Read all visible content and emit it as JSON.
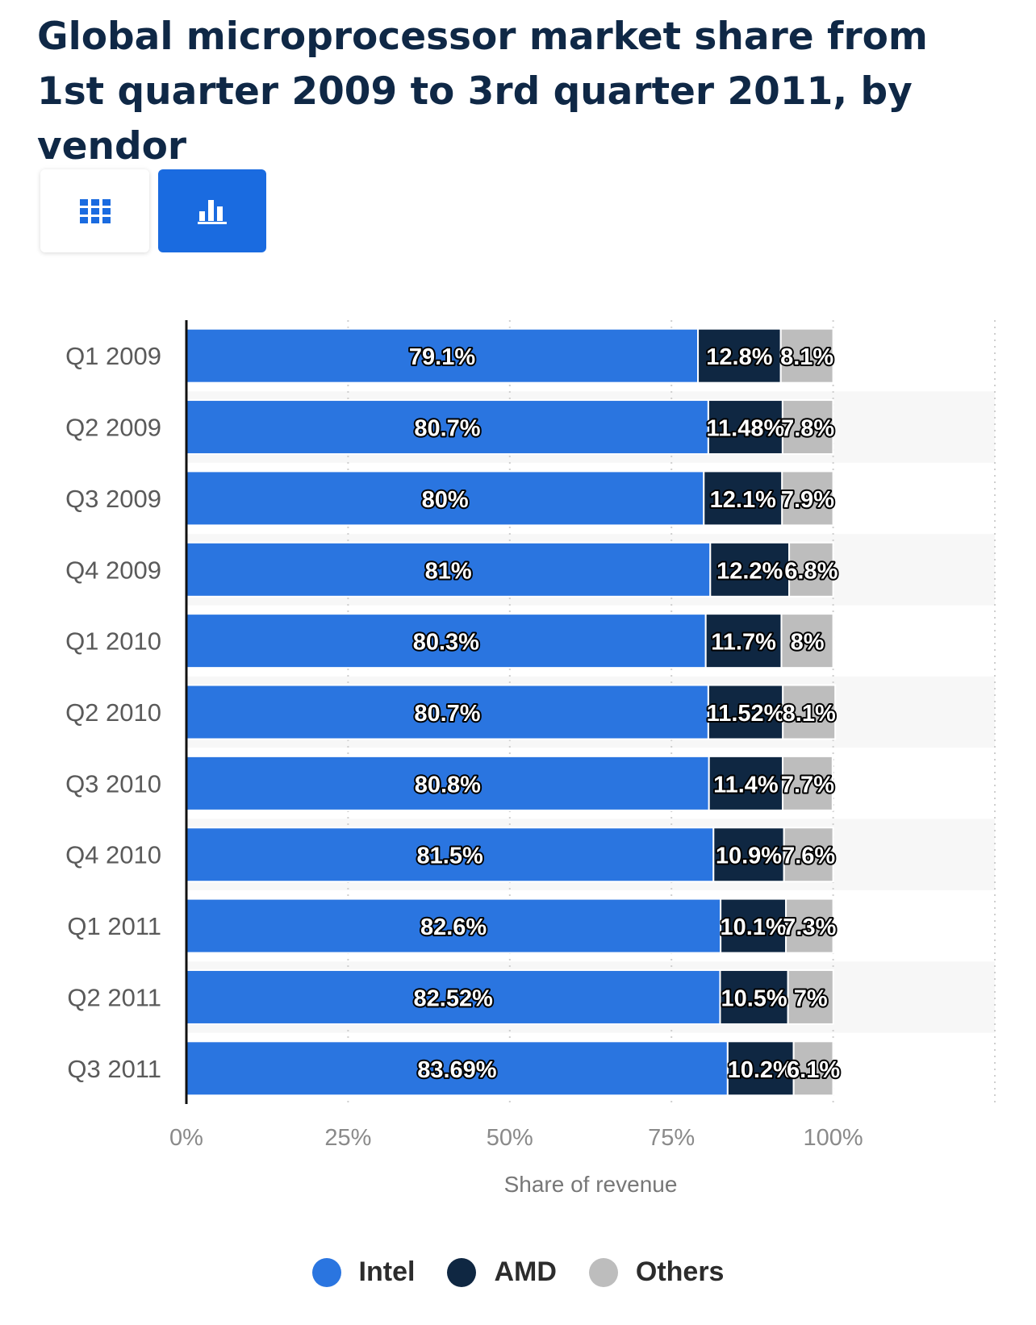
{
  "title": "Global microprocessor market share from 1st quarter 2009 to 3rd quarter 2011, by vendor",
  "view_toggle": {
    "table_icon": "table-grid-icon",
    "chart_icon": "bar-chart-icon",
    "active": "chart"
  },
  "colors": {
    "intel": "#2a75e0",
    "amd": "#0f2742",
    "others": "#bdbdbd",
    "accent": "#1a6be0",
    "title": "#0f2846"
  },
  "chart_data": {
    "type": "bar",
    "orientation": "horizontal",
    "stacked": true,
    "categories": [
      "Q1 2009",
      "Q2 2009",
      "Q3 2009",
      "Q4 2009",
      "Q1 2010",
      "Q2 2010",
      "Q3 2010",
      "Q4 2010",
      "Q1 2011",
      "Q2 2011",
      "Q3 2011"
    ],
    "series": [
      {
        "name": "Intel",
        "color": "#2a75e0",
        "values": [
          79.1,
          80.7,
          80,
          81,
          80.3,
          80.7,
          80.8,
          81.5,
          82.6,
          82.52,
          83.69
        ],
        "labels": [
          "79.1%",
          "80.7%",
          "80%",
          "81%",
          "80.3%",
          "80.7%",
          "80.8%",
          "81.5%",
          "82.6%",
          "82.52%",
          "83.69%"
        ]
      },
      {
        "name": "AMD",
        "color": "#0f2742",
        "values": [
          12.8,
          11.48,
          12.1,
          12.2,
          11.7,
          11.52,
          11.4,
          10.9,
          10.1,
          10.5,
          10.2
        ],
        "labels": [
          "12.8%",
          "11.48%",
          "12.1%",
          "12.2%",
          "11.7%",
          "11.52%",
          "11.4%",
          "10.9%",
          "10.1%",
          "10.5%",
          "10.2%"
        ]
      },
      {
        "name": "Others",
        "color": "#bdbdbd",
        "values": [
          8.1,
          7.8,
          7.9,
          6.8,
          8,
          8.1,
          7.7,
          7.6,
          7.3,
          7,
          6.1
        ],
        "labels": [
          "8.1%",
          "7.8%",
          "7.9%",
          "6.8%",
          "8%",
          "8.1%",
          "7.7%",
          "7.6%",
          "7.3%",
          "7%",
          "6.1%"
        ]
      }
    ],
    "xlim": [
      0,
      125
    ],
    "xticks": [
      0,
      25,
      50,
      75,
      100
    ],
    "xtick_labels": [
      "0%",
      "25%",
      "50%",
      "75%",
      "100%"
    ],
    "xlabel": "Share of revenue",
    "ylabel": "",
    "grid": true,
    "legend_position": "bottom-center"
  }
}
